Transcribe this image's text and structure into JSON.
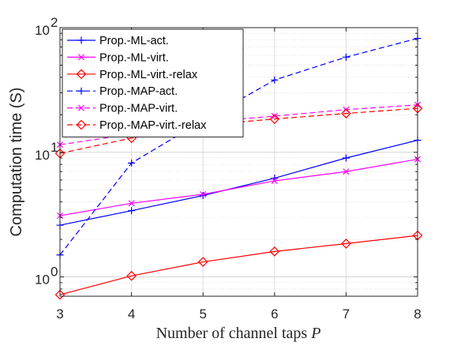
{
  "chart_data": {
    "type": "line",
    "title": "",
    "xlabel": "Number of channel taps",
    "xlabel_symbol": "P",
    "ylabel": "Computation time (S)",
    "yscale": "log",
    "xlim": [
      3,
      8
    ],
    "ylim": [
      0.7,
      100
    ],
    "grid": true,
    "x": [
      3,
      4,
      5,
      6,
      7,
      8
    ],
    "x_tick_labels": [
      "3",
      "4",
      "5",
      "6",
      "7",
      "8"
    ],
    "y_tick_labels": [
      {
        "base": "10",
        "exp": "0",
        "value": 1
      },
      {
        "base": "10",
        "exp": "1",
        "value": 10
      },
      {
        "base": "10",
        "exp": "2",
        "value": 100
      }
    ],
    "legend_position": "top-left",
    "series": [
      {
        "name": "Prop.-ML-act.",
        "values": [
          2.6,
          3.4,
          4.5,
          6.2,
          9.0,
          12.5
        ],
        "color": "#0000ff",
        "dash": "solid",
        "marker": "plus"
      },
      {
        "name": "Prop.-ML-virt.",
        "values": [
          3.1,
          3.9,
          4.6,
          5.9,
          7.0,
          8.8
        ],
        "color": "#ff00ff",
        "dash": "solid",
        "marker": "x"
      },
      {
        "name": "Prop.-ML-virt.-relax",
        "values": [
          0.72,
          1.02,
          1.32,
          1.6,
          1.85,
          2.15
        ],
        "color": "#ff0000",
        "dash": "solid",
        "marker": "diamond"
      },
      {
        "name": "Prop.-MAP-act.",
        "values": [
          1.5,
          8.2,
          18.0,
          38.0,
          58.0,
          82.0
        ],
        "color": "#0000ff",
        "dash": "dashed",
        "marker": "plus"
      },
      {
        "name": "Prop.-MAP-virt.",
        "values": [
          11.5,
          14.0,
          17.5,
          19.5,
          22.0,
          24.0
        ],
        "color": "#ff00ff",
        "dash": "dashed",
        "marker": "x"
      },
      {
        "name": "Prop.-MAP-virt.-relax",
        "values": [
          9.8,
          13.0,
          16.5,
          18.5,
          20.5,
          22.5
        ],
        "color": "#ff0000",
        "dash": "dashed",
        "marker": "diamond"
      }
    ]
  }
}
